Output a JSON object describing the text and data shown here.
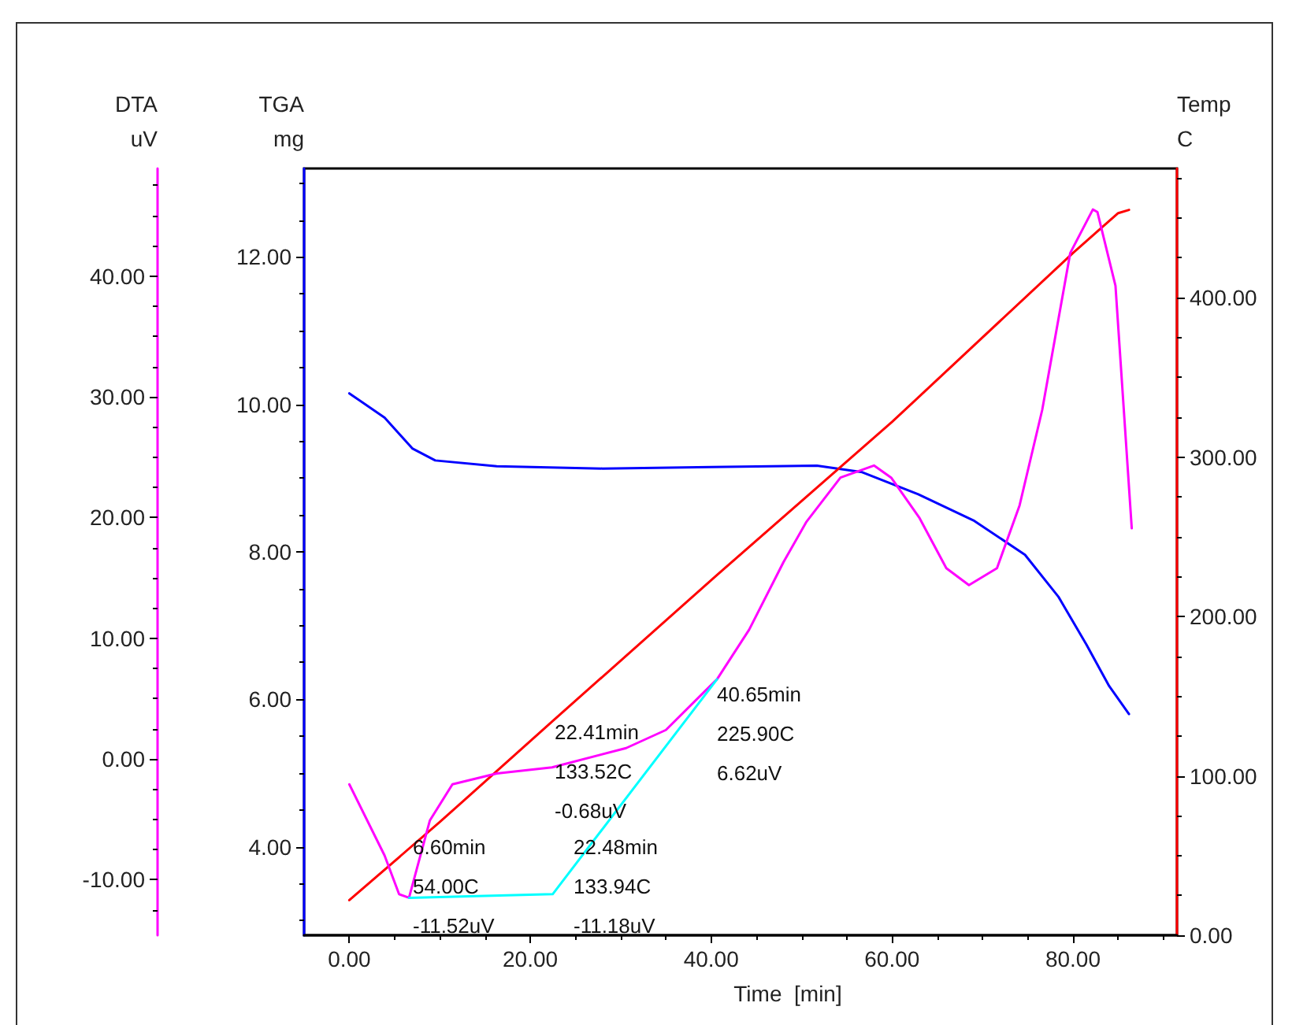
{
  "chart_data": {
    "type": "line",
    "xlabel": "Time  [min]",
    "ylabel": "TGA\nmg",
    "y2label": "Temp\nC",
    "y3label": "DTA\nuV",
    "xlim": [
      -5,
      91.5
    ],
    "xticks": [
      {
        "value": 0,
        "label": "0.00"
      },
      {
        "value": 20,
        "label": "20.00"
      },
      {
        "value": 40,
        "label": "40.00"
      },
      {
        "value": 60,
        "label": "60.00"
      },
      {
        "value": 80,
        "label": "80.00"
      }
    ],
    "ylim": [
      2.8,
      13.2
    ],
    "yticks": [
      {
        "value": 4,
        "label": "4.00"
      },
      {
        "value": 6,
        "label": "6.00"
      },
      {
        "value": 8,
        "label": "8.00"
      },
      {
        "value": 10,
        "label": "10.00"
      },
      {
        "value": 12,
        "label": "12.00"
      }
    ],
    "y2lim": [
      0,
      481
    ],
    "y2ticks": [
      {
        "value": 0,
        "label": "0.00"
      },
      {
        "value": 100,
        "label": "100.00"
      },
      {
        "value": 200,
        "label": "200.00"
      },
      {
        "value": 300,
        "label": "300.00"
      },
      {
        "value": 400,
        "label": "400.00"
      }
    ],
    "y3lim": [
      -14.6,
      48.9
    ],
    "y3ticks": [
      {
        "value": -10,
        "label": "-10.00"
      },
      {
        "value": 0,
        "label": "0.00"
      },
      {
        "value": 10,
        "label": "10.00"
      },
      {
        "value": 20,
        "label": "20.00"
      },
      {
        "value": 30,
        "label": "30.00"
      },
      {
        "value": 40,
        "label": "40.00"
      }
    ],
    "series": [
      {
        "color": "#0000ff",
        "axis": "y",
        "x": [
          0,
          3.9,
          7.0,
          9.5,
          16.3,
          28,
          40,
          51.7,
          56.7,
          62.9,
          69.1,
          74.7,
          78.4,
          81.5,
          84.0,
          86.2
        ],
        "values": [
          10.15,
          9.82,
          9.4,
          9.24,
          9.16,
          9.13,
          9.15,
          9.17,
          9.08,
          8.78,
          8.42,
          7.96,
          7.39,
          6.74,
          6.18,
          5.8
        ]
      },
      {
        "color": "#ff0000",
        "axis": "y2",
        "x": [
          0,
          10,
          22.41,
          40.65,
          60,
          80,
          83,
          85,
          86.2
        ],
        "values": [
          22,
          71,
          134,
          226,
          322,
          428,
          443,
          453,
          455
        ]
      },
      {
        "color": "#ff00ff",
        "axis": "y3",
        "x": [
          0,
          3.9,
          5.5,
          6.6,
          8.9,
          11.4,
          16.3,
          22.41,
          30.6,
          35,
          39.3,
          40.65,
          44.2,
          48,
          50.5,
          54.3,
          58,
          59.9,
          63,
          66,
          68.5,
          71.6,
          74.1,
          76.6,
          79.7,
          82.2,
          82.7,
          84.7,
          86.5
        ],
        "values": [
          -2.1,
          -8,
          -11.2,
          -11.5,
          -5.1,
          -2.1,
          -1.2,
          -0.7,
          0.9,
          2.4,
          5.6,
          6.6,
          10.7,
          16.3,
          19.6,
          23.3,
          24.3,
          23.3,
          20,
          15.8,
          14.4,
          15.8,
          21,
          28.9,
          41.9,
          45.5,
          45.3,
          39.2,
          19.1
        ]
      },
      {
        "color": "#00ffff",
        "axis": "y3",
        "x": [
          6.6,
          22.48,
          40.65
        ],
        "values": [
          -11.5,
          -11.2,
          6.6
        ]
      }
    ],
    "annotations": [
      "6.60min\n54.00C\n-11.52uV",
      "22.41min\n133.52C\n-0.68uV",
      "22.48min\n133.94C\n-11.18uV",
      "40.65min\n225.90C\n6.62uV"
    ],
    "grid": false,
    "marker": "none",
    "line_style": "solid"
  }
}
